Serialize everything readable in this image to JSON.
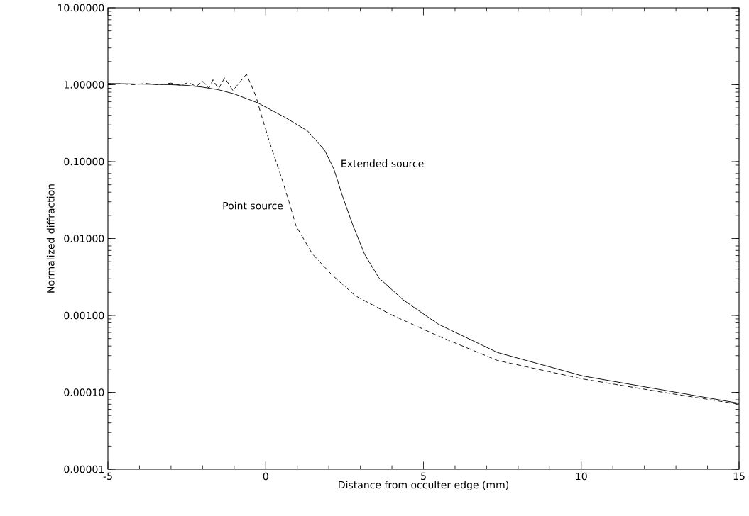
{
  "chart_data": {
    "type": "line",
    "xlabel": "Distance from occulter edge (mm)",
    "ylabel": "Normalized diffraction",
    "log": "y",
    "xlim": [
      -5,
      15
    ],
    "xticks": [
      -5,
      0,
      5,
      10,
      15
    ],
    "ylim": [
      1e-05,
      10
    ],
    "yticks": [
      {
        "value": 1e-05,
        "label": "0.00001"
      },
      {
        "value": 0.0001,
        "label": "0.00010"
      },
      {
        "value": 0.001,
        "label": "0.00100"
      },
      {
        "value": 0.01,
        "label": "0.01000"
      },
      {
        "value": 0.1,
        "label": "0.10000"
      },
      {
        "value": 1,
        "label": "1.00000"
      },
      {
        "value": 10,
        "label": "10.00000"
      }
    ],
    "grid": false,
    "series": [
      {
        "name": "Extended source",
        "color": "#000000",
        "line_style": "solid",
        "x": [
          -5,
          -4,
          -3,
          -2.5,
          -2,
          -1.5,
          -1.0,
          -0.25,
          0.59,
          1.33,
          1.87,
          2.16,
          2.45,
          2.77,
          3.13,
          3.58,
          4.35,
          5.47,
          7.34,
          10.05,
          12.6,
          15
        ],
        "values": [
          1.04,
          1.02,
          1.0,
          0.98,
          0.93,
          0.86,
          0.76,
          0.58,
          0.38,
          0.25,
          0.14,
          0.08,
          0.034,
          0.0146,
          0.0063,
          0.0031,
          0.0016,
          0.00077,
          0.00033,
          0.000163,
          0.000107,
          7.2e-05
        ]
      },
      {
        "name": "Point source",
        "color": "#000000",
        "line_style": "dashed",
        "x": [
          -5,
          -4.6,
          -4.2,
          -3.8,
          -3.4,
          -3.0,
          -2.7,
          -2.45,
          -2.2,
          -2.0,
          -1.8,
          -1.67,
          -1.5,
          -1.3,
          -1.04,
          -0.61,
          -0.31,
          -0.16,
          0.14,
          0.51,
          0.74,
          0.96,
          1.48,
          2.09,
          2.84,
          3.96,
          5.47,
          7.34,
          10.05,
          12.6,
          15
        ],
        "values": [
          1.0,
          1.03,
          1.0,
          1.04,
          1.0,
          1.05,
          0.98,
          1.07,
          0.95,
          1.11,
          0.9,
          1.16,
          0.88,
          1.23,
          0.84,
          1.37,
          0.71,
          0.43,
          0.17,
          0.06,
          0.03,
          0.0146,
          0.0063,
          0.0034,
          0.0018,
          0.00103,
          0.00054,
          0.00026,
          0.000149,
          0.0001,
          7e-05
        ]
      }
    ]
  }
}
